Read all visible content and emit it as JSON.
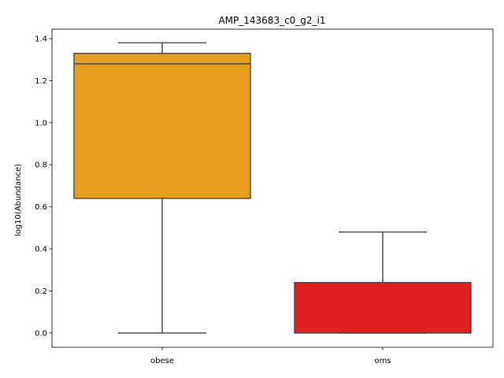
{
  "chart_data": {
    "type": "box",
    "title": "AMP_143683_c0_g2_i1",
    "xlabel": "",
    "ylabel": "log10(Abundance)",
    "ylim": [
      -0.068,
      1.445
    ],
    "yticks": [
      "0.0",
      "0.2",
      "0.4",
      "0.6",
      "0.8",
      "1.0",
      "1.2",
      "1.4"
    ],
    "ytick_values": [
      0.0,
      0.2,
      0.4,
      0.6,
      0.8,
      1.0,
      1.2,
      1.4
    ],
    "categories": [
      "obese",
      "oms"
    ],
    "boxes": [
      {
        "category": "obese",
        "whisker_low": 0.0,
        "q1": 0.64,
        "median": 1.28,
        "q3": 1.33,
        "whisker_high": 1.38,
        "color": "#e69f1d"
      },
      {
        "category": "oms",
        "whisker_low": 0.0,
        "q1": 0.0,
        "median": 0.0,
        "q3": 0.24,
        "whisker_high": 0.48,
        "color": "#e02020"
      }
    ],
    "grid": false,
    "line_color": "#4d4d4d"
  }
}
